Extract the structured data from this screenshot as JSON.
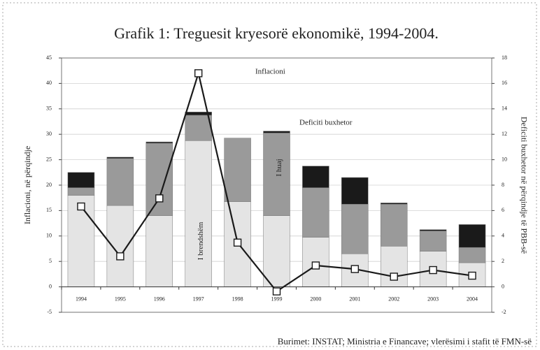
{
  "chart_data": {
    "type": "bar",
    "title": "Grafik 1: Treguesit kryesorë ekonomikë, 1994-2004.",
    "ylabel": "Inflacioni, në përqindje",
    "y2label": "Deficiti buxhetor në përqindje të PBB-së",
    "source": "Burimet: INSTAT; Ministria e Financave; vlerësimi i stafit të FMN-së",
    "categories": [
      "1994",
      "1995",
      "1996",
      "1997",
      "1998",
      "1999",
      "2000",
      "2001",
      "2002",
      "2003",
      "2004"
    ],
    "ylim": [
      -5,
      45
    ],
    "yticks": [
      -5,
      0,
      5,
      10,
      15,
      20,
      25,
      30,
      35,
      40,
      45
    ],
    "y2lim": [
      -2,
      18
    ],
    "y2ticks": [
      -2,
      0,
      2,
      4,
      6,
      8,
      10,
      12,
      14,
      16,
      18
    ],
    "grid": true,
    "stacked": true,
    "annotations": [
      "Inflacioni",
      "Deficiti buxhetor"
    ],
    "series": [
      {
        "name": "I brendshëm",
        "type": "bar",
        "axis": "y2",
        "color": "#e4e4e4",
        "values": [
          7.2,
          6.4,
          5.6,
          11.5,
          6.7,
          5.6,
          3.9,
          2.6,
          3.2,
          2.8,
          1.9
        ]
      },
      {
        "name": "I huaj",
        "type": "bar",
        "axis": "y2",
        "color": "#9a9a9a",
        "values": [
          0.6,
          3.7,
          5.7,
          2.0,
          5.0,
          6.5,
          3.9,
          3.9,
          3.3,
          1.6,
          1.2
        ]
      },
      {
        "type": "bar",
        "axis": "y2",
        "color": "#1a1a1a",
        "values": [
          1.2,
          0.1,
          0.1,
          0.25,
          0,
          0.15,
          1.7,
          2.1,
          0.1,
          0.1,
          1.8
        ]
      },
      {
        "type": "line",
        "axis": "y",
        "color": "#1a1a1a",
        "values": [
          15.8,
          6.0,
          17.4,
          42,
          8.7,
          -0.9,
          4.2,
          3.5,
          2.0,
          3.3,
          2.2
        ]
      }
    ]
  }
}
